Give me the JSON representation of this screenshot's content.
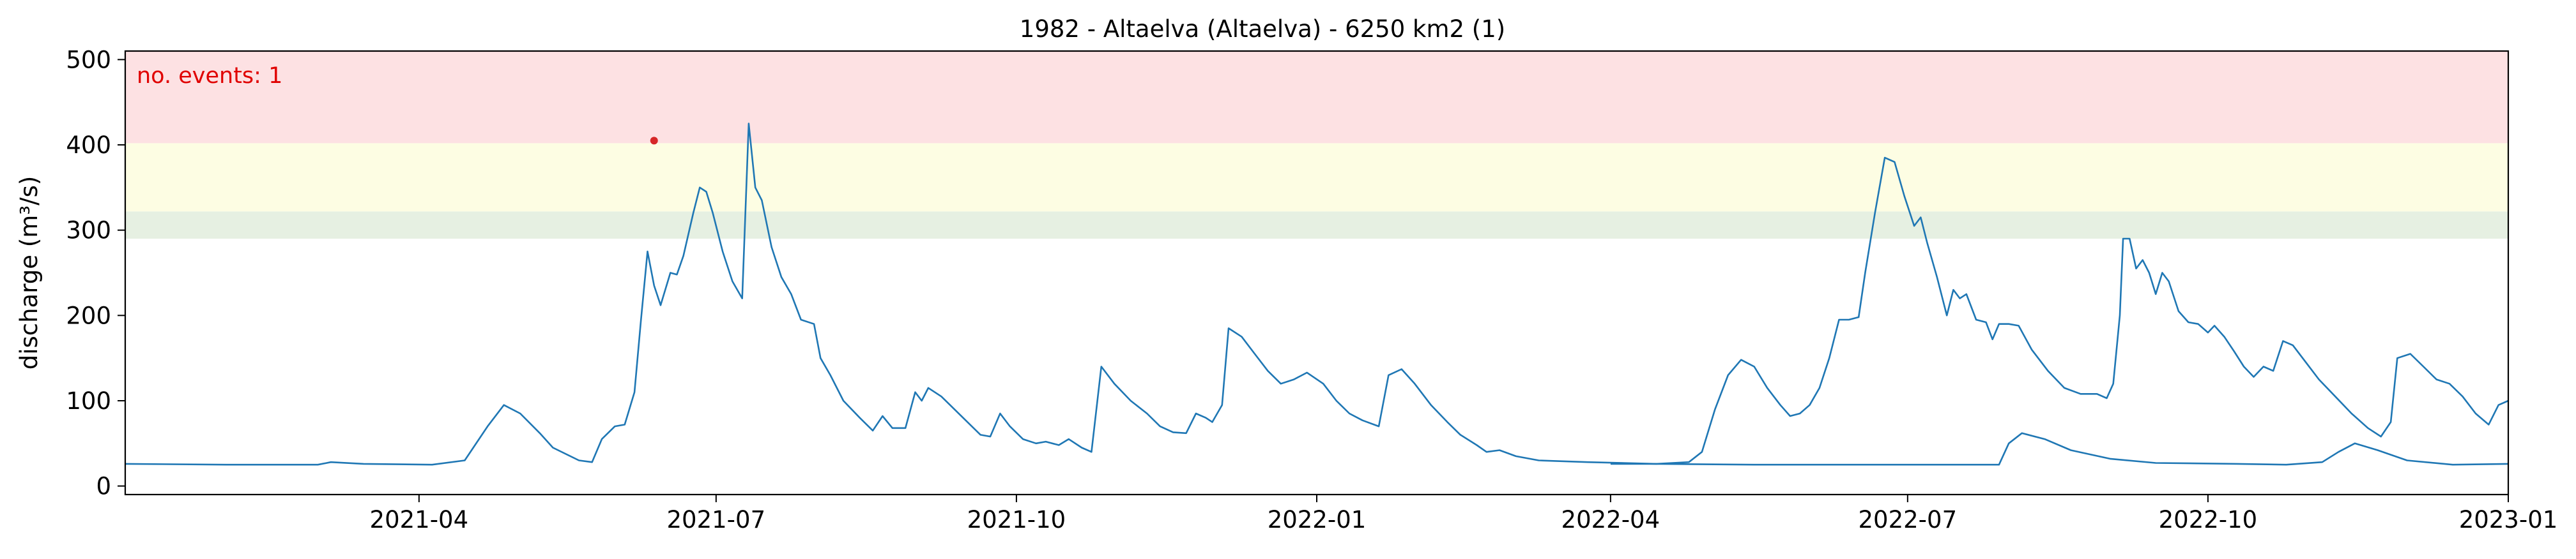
{
  "chart_data": {
    "type": "line",
    "title": "1982 - Altaelva (Altaelva) - 6250 km2 (1)",
    "xlabel": "",
    "ylabel": "discharge (m³/s)",
    "xlim": [
      "2021-01-01",
      "2023-01-01"
    ],
    "ylim": [
      -10,
      510
    ],
    "yticks": [
      0,
      100,
      200,
      300,
      400,
      500
    ],
    "xticks": [
      "2021-04",
      "2021-07",
      "2021-10",
      "2022-01",
      "2022-04",
      "2022-07",
      "2022-10",
      "2023-01"
    ],
    "grid": false,
    "line_color": "#1f77b4",
    "annotation": {
      "text": "no. events: 1",
      "color": "#e00000",
      "position": "top-left"
    },
    "threshold_bands": [
      {
        "from": 290,
        "to": 322,
        "color": "#e6f0e2"
      },
      {
        "from": 322,
        "to": 402,
        "color": "#fdfde3"
      },
      {
        "from": 402,
        "to": 510,
        "color": "#fde1e3"
      }
    ],
    "events": [
      {
        "date": "2021-06-12",
        "value": 405,
        "color": "#d62728"
      }
    ],
    "series": [
      {
        "points": [
          [
            "2021-01-01",
            26
          ],
          [
            "2021-02-01",
            25
          ],
          [
            "2021-03-01",
            25
          ],
          [
            "2021-03-05",
            28
          ],
          [
            "2021-03-15",
            26
          ],
          [
            "2021-04-05",
            25
          ],
          [
            "2021-04-15",
            30
          ],
          [
            "2021-04-22",
            70
          ],
          [
            "2021-04-27",
            95
          ],
          [
            "2021-05-02",
            85
          ],
          [
            "2021-05-08",
            62
          ],
          [
            "2021-05-12",
            45
          ],
          [
            "2021-05-20",
            30
          ],
          [
            "2021-05-24",
            28
          ],
          [
            "2021-05-27",
            55
          ],
          [
            "2021-05-31",
            70
          ],
          [
            "2021-06-03",
            72
          ],
          [
            "2021-06-06",
            110
          ],
          [
            "2021-06-08",
            195
          ],
          [
            "2021-06-10",
            275
          ],
          [
            "2021-06-12",
            235
          ],
          [
            "2021-06-14",
            212
          ],
          [
            "2021-06-17",
            250
          ],
          [
            "2021-06-19",
            248
          ],
          [
            "2021-06-21",
            270
          ],
          [
            "2021-06-24",
            320
          ],
          [
            "2021-06-26",
            350
          ],
          [
            "2021-06-28",
            345
          ],
          [
            "2021-06-30",
            320
          ],
          [
            "2021-07-03",
            275
          ],
          [
            "2021-07-06",
            240
          ],
          [
            "2021-07-09",
            220
          ],
          [
            "2021-07-11",
            425
          ],
          [
            "2021-07-13",
            350
          ],
          [
            "2021-07-15",
            335
          ],
          [
            "2021-07-18",
            280
          ],
          [
            "2021-07-21",
            245
          ],
          [
            "2021-07-24",
            225
          ],
          [
            "2021-07-27",
            195
          ],
          [
            "2021-07-31",
            190
          ],
          [
            "2021-08-02",
            150
          ],
          [
            "2021-08-05",
            130
          ],
          [
            "2021-08-09",
            100
          ],
          [
            "2021-08-14",
            80
          ],
          [
            "2021-08-18",
            65
          ],
          [
            "2021-08-21",
            82
          ],
          [
            "2021-08-24",
            68
          ],
          [
            "2021-08-28",
            68
          ],
          [
            "2021-08-31",
            110
          ],
          [
            "2021-09-02",
            100
          ],
          [
            "2021-09-04",
            115
          ],
          [
            "2021-09-08",
            105
          ],
          [
            "2021-09-12",
            90
          ],
          [
            "2021-09-16",
            75
          ],
          [
            "2021-09-20",
            60
          ],
          [
            "2021-09-23",
            58
          ],
          [
            "2021-09-26",
            85
          ],
          [
            "2021-09-29",
            70
          ],
          [
            "2021-10-03",
            55
          ],
          [
            "2021-10-07",
            50
          ],
          [
            "2021-10-10",
            52
          ],
          [
            "2021-10-14",
            48
          ],
          [
            "2021-10-17",
            55
          ],
          [
            "2021-10-21",
            45
          ],
          [
            "2021-10-24",
            40
          ],
          [
            "2021-10-27",
            140
          ],
          [
            "2021-10-31",
            120
          ],
          [
            "2021-11-05",
            100
          ],
          [
            "2021-11-10",
            85
          ],
          [
            "2021-11-14",
            70
          ],
          [
            "2021-11-18",
            63
          ],
          [
            "2021-11-22",
            62
          ],
          [
            "2021-11-25",
            85
          ],
          [
            "2021-11-28",
            80
          ],
          [
            "2021-11-30",
            75
          ],
          [
            "2021-12-03",
            95
          ],
          [
            "2021-12-05",
            185
          ],
          [
            "2021-12-09",
            175
          ],
          [
            "2021-12-13",
            155
          ],
          [
            "2021-12-17",
            135
          ],
          [
            "2021-12-21",
            120
          ],
          [
            "2021-12-25",
            125
          ],
          [
            "2021-12-29",
            133
          ],
          [
            "2022-01-03",
            120
          ],
          [
            "2022-01-07",
            100
          ],
          [
            "2022-01-11",
            85
          ],
          [
            "2022-01-15",
            77
          ],
          [
            "2022-01-20",
            70
          ],
          [
            "2022-01-23",
            130
          ],
          [
            "2022-01-27",
            137
          ],
          [
            "2022-01-31",
            120
          ],
          [
            "2022-02-05",
            95
          ],
          [
            "2022-02-10",
            75
          ],
          [
            "2022-02-14",
            60
          ],
          [
            "2022-02-19",
            48
          ],
          [
            "2022-02-22",
            40
          ],
          [
            "2022-02-26",
            42
          ],
          [
            "2022-03-03",
            35
          ],
          [
            "2022-03-10",
            30
          ],
          [
            "2022-03-25",
            28
          ],
          [
            "2022-04-15",
            26
          ],
          [
            "2022-05-15",
            25
          ],
          [
            "2022-06-15",
            25
          ],
          [
            "2022-07-05",
            25
          ],
          [
            "2022-07-26",
            25
          ],
          [
            "2022-07-29",
            25
          ],
          [
            "2022-08-01",
            50
          ],
          [
            "2022-08-05",
            62
          ],
          [
            "2022-08-12",
            55
          ],
          [
            "2022-08-20",
            42
          ],
          [
            "2022-09-01",
            32
          ],
          [
            "2022-09-15",
            27
          ],
          [
            "2022-10-10",
            26
          ],
          [
            "2022-10-25",
            25
          ],
          [
            "2022-11-05",
            28
          ],
          [
            "2022-11-10",
            40
          ],
          [
            "2022-11-15",
            50
          ],
          [
            "2022-11-22",
            42
          ],
          [
            "2022-12-01",
            30
          ],
          [
            "2022-12-15",
            25
          ],
          [
            "2023-01-01",
            26
          ]
        ]
      },
      {
        "points": [
          [
            "2022-04-01",
            26
          ],
          [
            "2022-04-15",
            26
          ],
          [
            "2022-04-25",
            28
          ],
          [
            "2022-04-29",
            40
          ],
          [
            "2022-05-03",
            90
          ],
          [
            "2022-05-07",
            130
          ],
          [
            "2022-05-11",
            148
          ],
          [
            "2022-05-15",
            140
          ],
          [
            "2022-05-19",
            115
          ],
          [
            "2022-05-23",
            95
          ],
          [
            "2022-05-26",
            82
          ],
          [
            "2022-05-29",
            85
          ],
          [
            "2022-06-01",
            95
          ],
          [
            "2022-06-04",
            115
          ],
          [
            "2022-06-07",
            150
          ],
          [
            "2022-06-10",
            195
          ],
          [
            "2022-06-13",
            195
          ],
          [
            "2022-06-16",
            198
          ],
          [
            "2022-06-18",
            250
          ],
          [
            "2022-06-21",
            320
          ],
          [
            "2022-06-24",
            385
          ],
          [
            "2022-06-27",
            380
          ],
          [
            "2022-06-30",
            340
          ],
          [
            "2022-07-03",
            305
          ],
          [
            "2022-07-05",
            315
          ],
          [
            "2022-07-07",
            285
          ],
          [
            "2022-07-10",
            245
          ],
          [
            "2022-07-13",
            200
          ],
          [
            "2022-07-15",
            230
          ],
          [
            "2022-07-17",
            220
          ],
          [
            "2022-07-19",
            225
          ],
          [
            "2022-07-22",
            195
          ],
          [
            "2022-07-25",
            192
          ],
          [
            "2022-07-27",
            172
          ],
          [
            "2022-07-29",
            190
          ],
          [
            "2022-08-01",
            190
          ],
          [
            "2022-08-04",
            188
          ],
          [
            "2022-08-08",
            160
          ],
          [
            "2022-08-13",
            135
          ],
          [
            "2022-08-18",
            115
          ],
          [
            "2022-08-23",
            108
          ],
          [
            "2022-08-28",
            108
          ],
          [
            "2022-08-31",
            103
          ],
          [
            "2022-09-02",
            120
          ],
          [
            "2022-09-04",
            200
          ],
          [
            "2022-09-05",
            290
          ],
          [
            "2022-09-07",
            290
          ],
          [
            "2022-09-09",
            255
          ],
          [
            "2022-09-11",
            265
          ],
          [
            "2022-09-13",
            250
          ],
          [
            "2022-09-15",
            225
          ],
          [
            "2022-09-17",
            250
          ],
          [
            "2022-09-19",
            240
          ],
          [
            "2022-09-22",
            205
          ],
          [
            "2022-09-25",
            192
          ],
          [
            "2022-09-28",
            190
          ],
          [
            "2022-10-01",
            180
          ],
          [
            "2022-10-03",
            188
          ],
          [
            "2022-10-06",
            175
          ],
          [
            "2022-10-09",
            158
          ],
          [
            "2022-10-12",
            140
          ],
          [
            "2022-10-15",
            128
          ],
          [
            "2022-10-18",
            140
          ],
          [
            "2022-10-21",
            135
          ],
          [
            "2022-10-24",
            170
          ],
          [
            "2022-10-27",
            165
          ],
          [
            "2022-10-31",
            145
          ],
          [
            "2022-11-04",
            125
          ],
          [
            "2022-11-09",
            105
          ],
          [
            "2022-11-14",
            85
          ],
          [
            "2022-11-19",
            68
          ],
          [
            "2022-11-23",
            58
          ],
          [
            "2022-11-26",
            75
          ],
          [
            "2022-11-28",
            150
          ],
          [
            "2022-12-02",
            155
          ],
          [
            "2022-12-06",
            140
          ],
          [
            "2022-12-10",
            125
          ],
          [
            "2022-12-14",
            120
          ],
          [
            "2022-12-18",
            105
          ],
          [
            "2022-12-22",
            85
          ],
          [
            "2022-12-26",
            72
          ],
          [
            "2022-12-29",
            95
          ],
          [
            "2023-01-01",
            100
          ]
        ]
      }
    ]
  }
}
